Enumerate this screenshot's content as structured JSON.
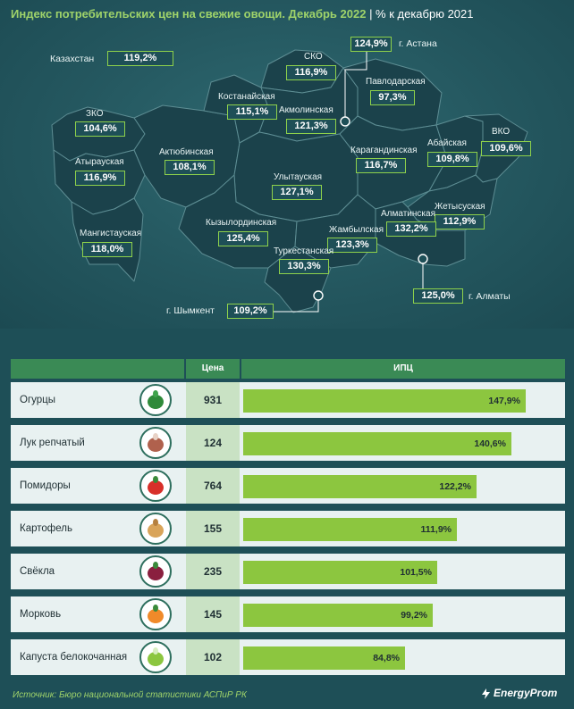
{
  "title": {
    "main": "Индекс потребительских цен на свежие овощи. Декабрь 2022",
    "unit": "| % к декабрю 2021"
  },
  "country": {
    "label": "Казахстан",
    "value": "119,2%"
  },
  "regions": [
    {
      "label": "СКО",
      "value": "116,9%"
    },
    {
      "label": "Павлодарская",
      "value": "97,3%"
    },
    {
      "label": "Костанайская",
      "value": "115,1%"
    },
    {
      "label": "Акмолинская",
      "value": "121,3%"
    },
    {
      "label": "ЗКО",
      "value": "104,6%"
    },
    {
      "label": "Актюбинская",
      "value": "108,1%"
    },
    {
      "label": "Атырауская",
      "value": "116,9%"
    },
    {
      "label": "Абайская",
      "value": "109,8%"
    },
    {
      "label": "ВКО",
      "value": "109,6%"
    },
    {
      "label": "Карагандинская",
      "value": "116,7%"
    },
    {
      "label": "Улытауская",
      "value": "127,1%"
    },
    {
      "label": "Жетысуская",
      "value": "112,9%"
    },
    {
      "label": "Мангистауская",
      "value": "118,0%"
    },
    {
      "label": "Кызылординская",
      "value": "125,4%"
    },
    {
      "label": "Алматинская",
      "value": "132,2%"
    },
    {
      "label": "Жамбылская",
      "value": "123,3%"
    },
    {
      "label": "Туркестанская",
      "value": "130,3%"
    }
  ],
  "cities": [
    {
      "label": "г. Астана",
      "value": "124,9%"
    },
    {
      "label": "г. Алматы",
      "value": "125,0%"
    },
    {
      "label": "г. Шымкент",
      "value": "109,2%"
    }
  ],
  "table": {
    "col_price": "Цена",
    "col_cpi": "ИПЦ"
  },
  "chart_data": {
    "type": "bar",
    "title": "Индекс потребительских цен на свежие овощи. Декабрь 2022",
    "categories": [
      "Огурцы",
      "Лук репчатый",
      "Помидоры",
      "Картофель",
      "Свёкла",
      "Морковь",
      "Капуста белокочанная"
    ],
    "prices": [
      931,
      124,
      764,
      155,
      235,
      145,
      102
    ],
    "values": [
      147.9,
      140.6,
      122.2,
      111.9,
      101.5,
      99.2,
      84.8
    ],
    "value_labels": [
      "147,9%",
      "140,6%",
      "122,2%",
      "111,9%",
      "101,5%",
      "99,2%",
      "84,8%"
    ],
    "icons": [
      "cucumber-icon",
      "onion-icon",
      "tomato-icon",
      "potato-icon",
      "beet-icon",
      "carrot-icon",
      "cabbage-icon"
    ],
    "colors": {
      "bar": "#8cc63f",
      "header": "#3a8a55",
      "background": "#1e4f57"
    }
  },
  "source": "Источник: Бюро национальной статистики АСПиР РК",
  "logo": "EnergyProm"
}
